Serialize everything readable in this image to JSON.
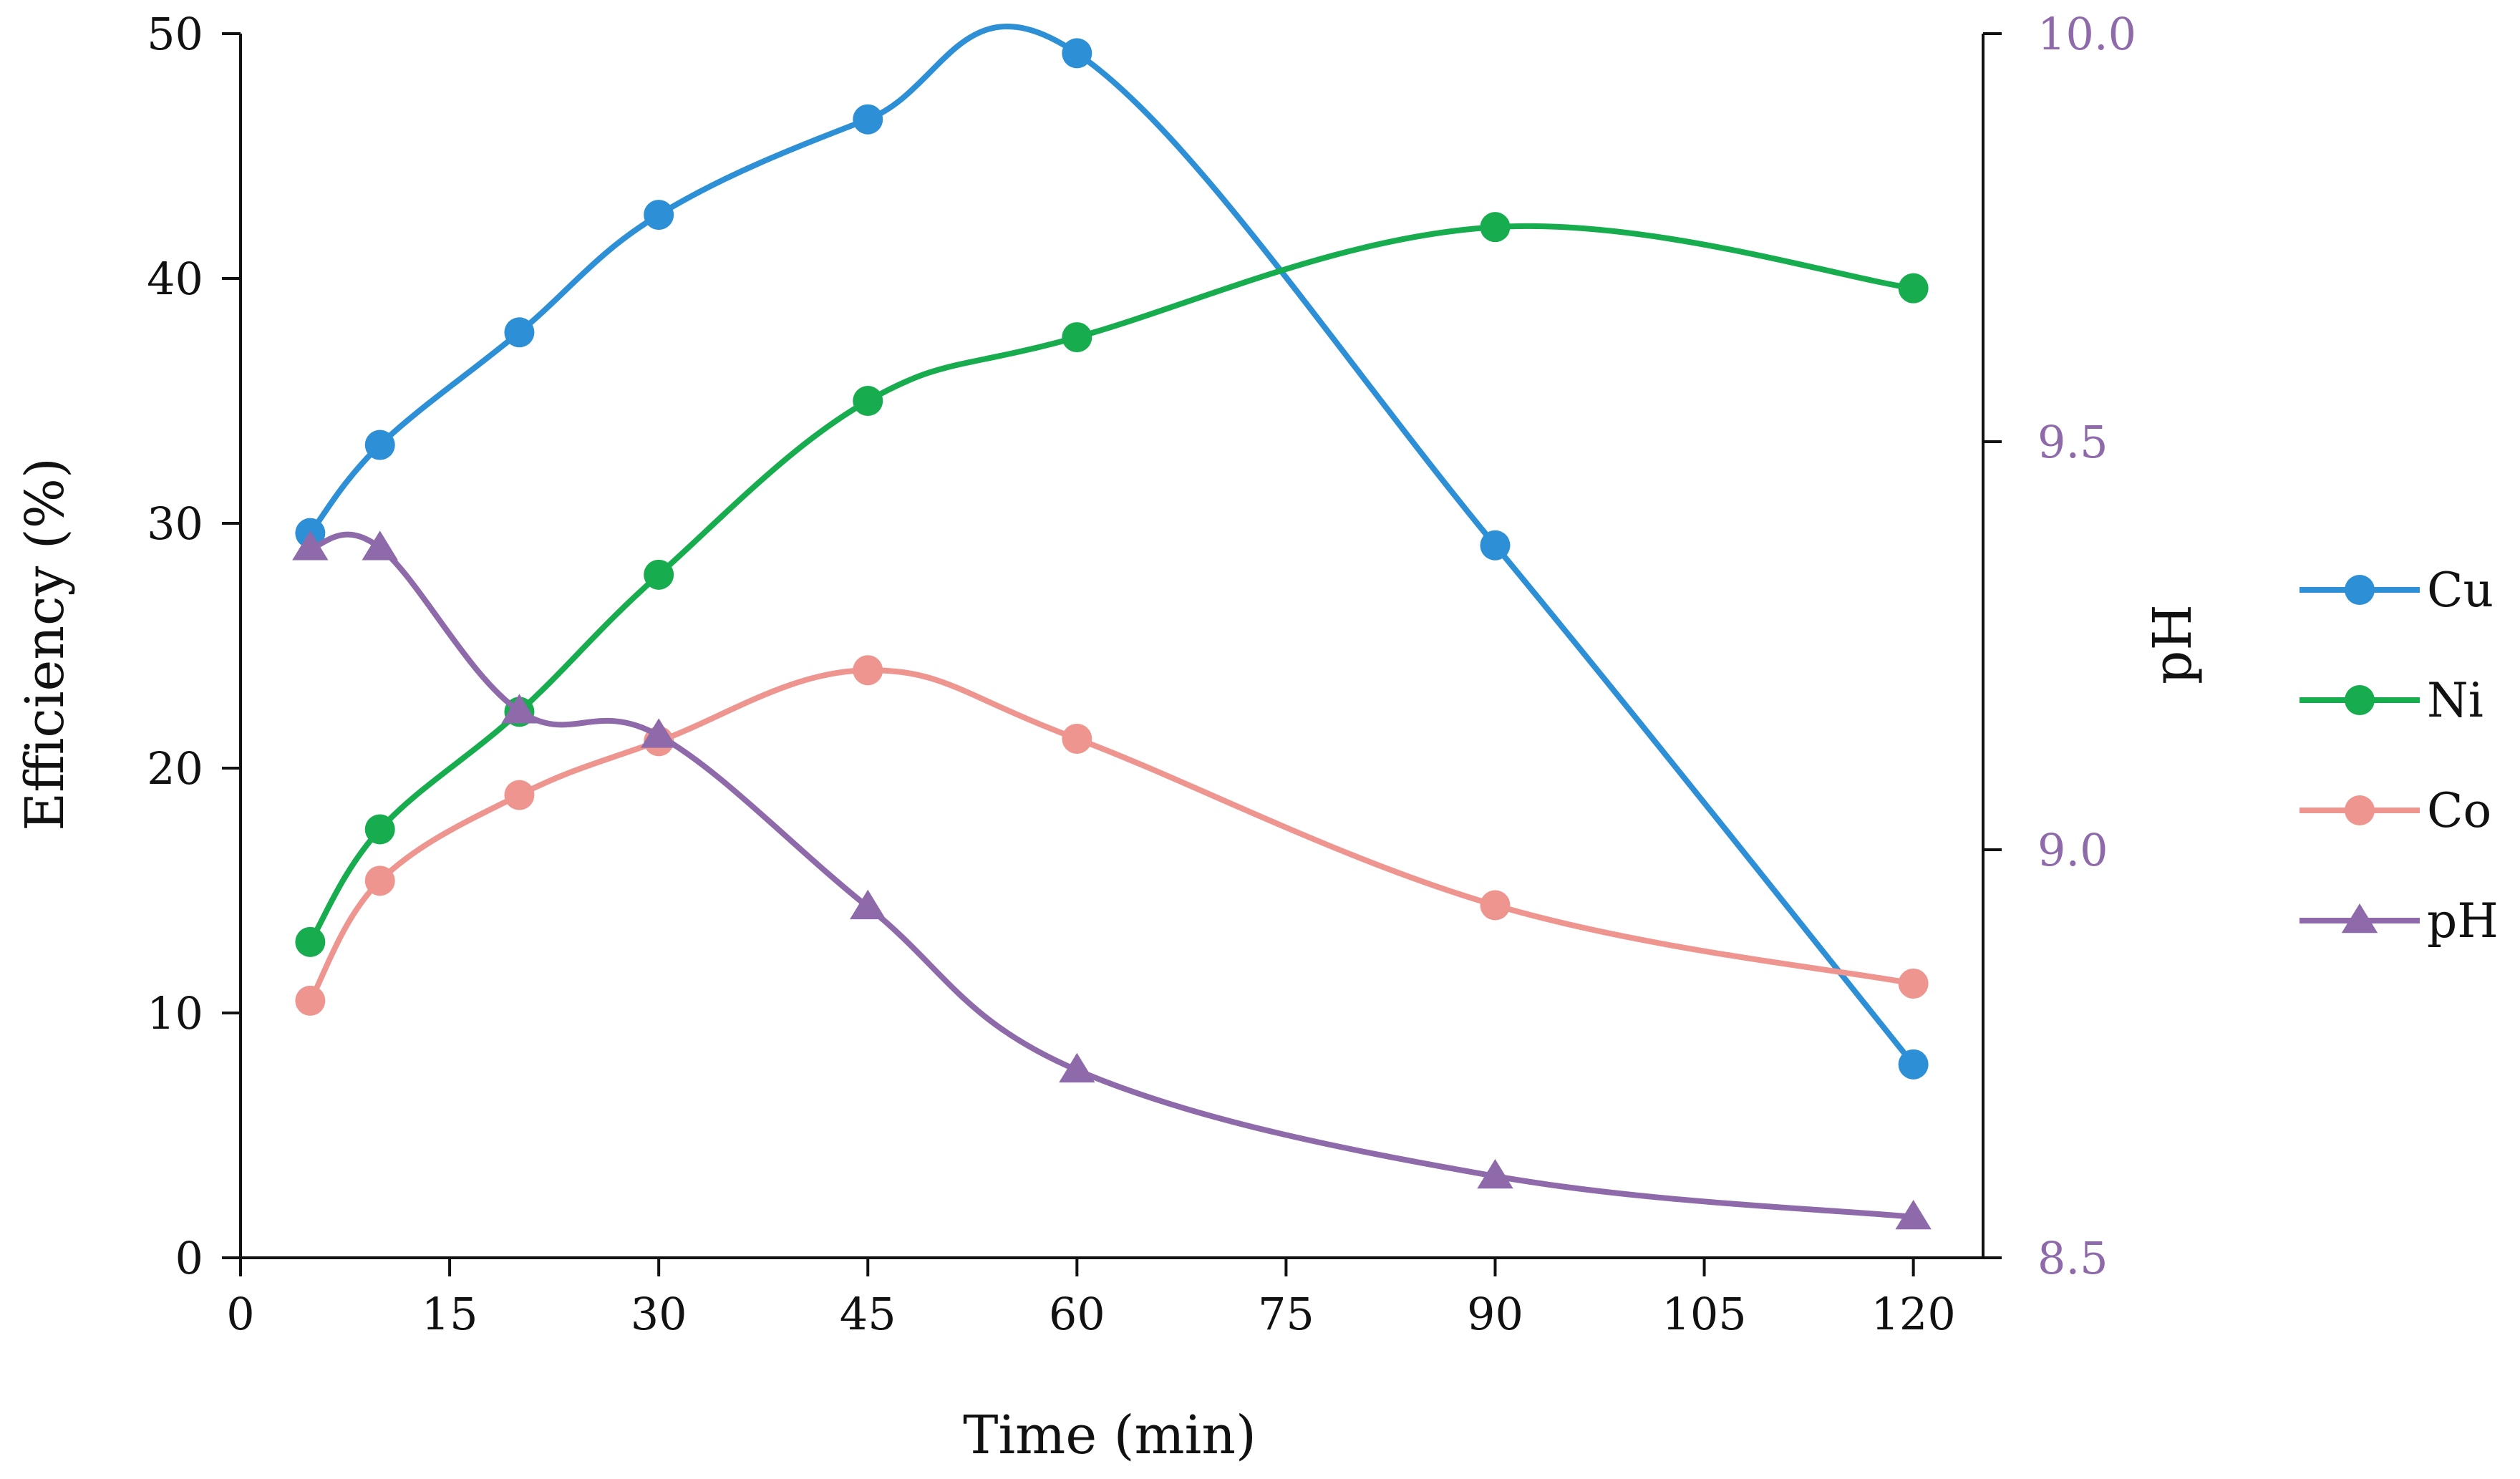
{
  "chart_data": {
    "type": "line",
    "title": "",
    "xlabel": "Time (min)",
    "ylabel_left": "Efficiency (%)",
    "ylabel_right": "pH",
    "xlim": [
      0,
      125
    ],
    "ylim_left": [
      0,
      50
    ],
    "ylim_right": [
      8.5,
      10.0
    ],
    "x_ticks": [
      "0",
      "15",
      "30",
      "45",
      "60",
      "75",
      "90",
      "105",
      "120"
    ],
    "y_left_ticks": [
      "0",
      "10",
      "20",
      "30",
      "40",
      "50"
    ],
    "y_right_ticks": [
      "8.5",
      "9.0",
      "9.5",
      "10.0"
    ],
    "right_axis_color": "#8e6aaa",
    "legend_position": "right",
    "series": [
      {
        "name": "Cu",
        "axis": "left",
        "marker": "circle",
        "color": "#2d8fd6",
        "x": [
          5,
          10,
          20,
          30,
          45,
          60,
          90,
          120
        ],
        "values": [
          29.6,
          33.2,
          37.8,
          42.6,
          46.5,
          49.2,
          29.1,
          7.9
        ]
      },
      {
        "name": "Ni",
        "axis": "left",
        "marker": "circle",
        "color": "#17ad4f",
        "x": [
          5,
          10,
          20,
          30,
          45,
          60,
          90,
          120
        ],
        "values": [
          12.9,
          17.5,
          22.3,
          27.9,
          35.0,
          37.6,
          42.1,
          39.6
        ]
      },
      {
        "name": "Co",
        "axis": "left",
        "marker": "circle",
        "color": "#ef9590",
        "x": [
          5,
          10,
          20,
          30,
          45,
          60,
          90,
          120
        ],
        "values": [
          10.5,
          15.4,
          18.9,
          21.1,
          24.0,
          21.2,
          14.4,
          11.2
        ]
      },
      {
        "name": "pH",
        "axis": "right",
        "marker": "triangle",
        "color": "#8e6aaa",
        "x": [
          5,
          10,
          20,
          30,
          45,
          60,
          90,
          120
        ],
        "values": [
          9.37,
          9.37,
          9.17,
          9.14,
          8.93,
          8.73,
          8.6,
          8.55
        ]
      }
    ]
  }
}
